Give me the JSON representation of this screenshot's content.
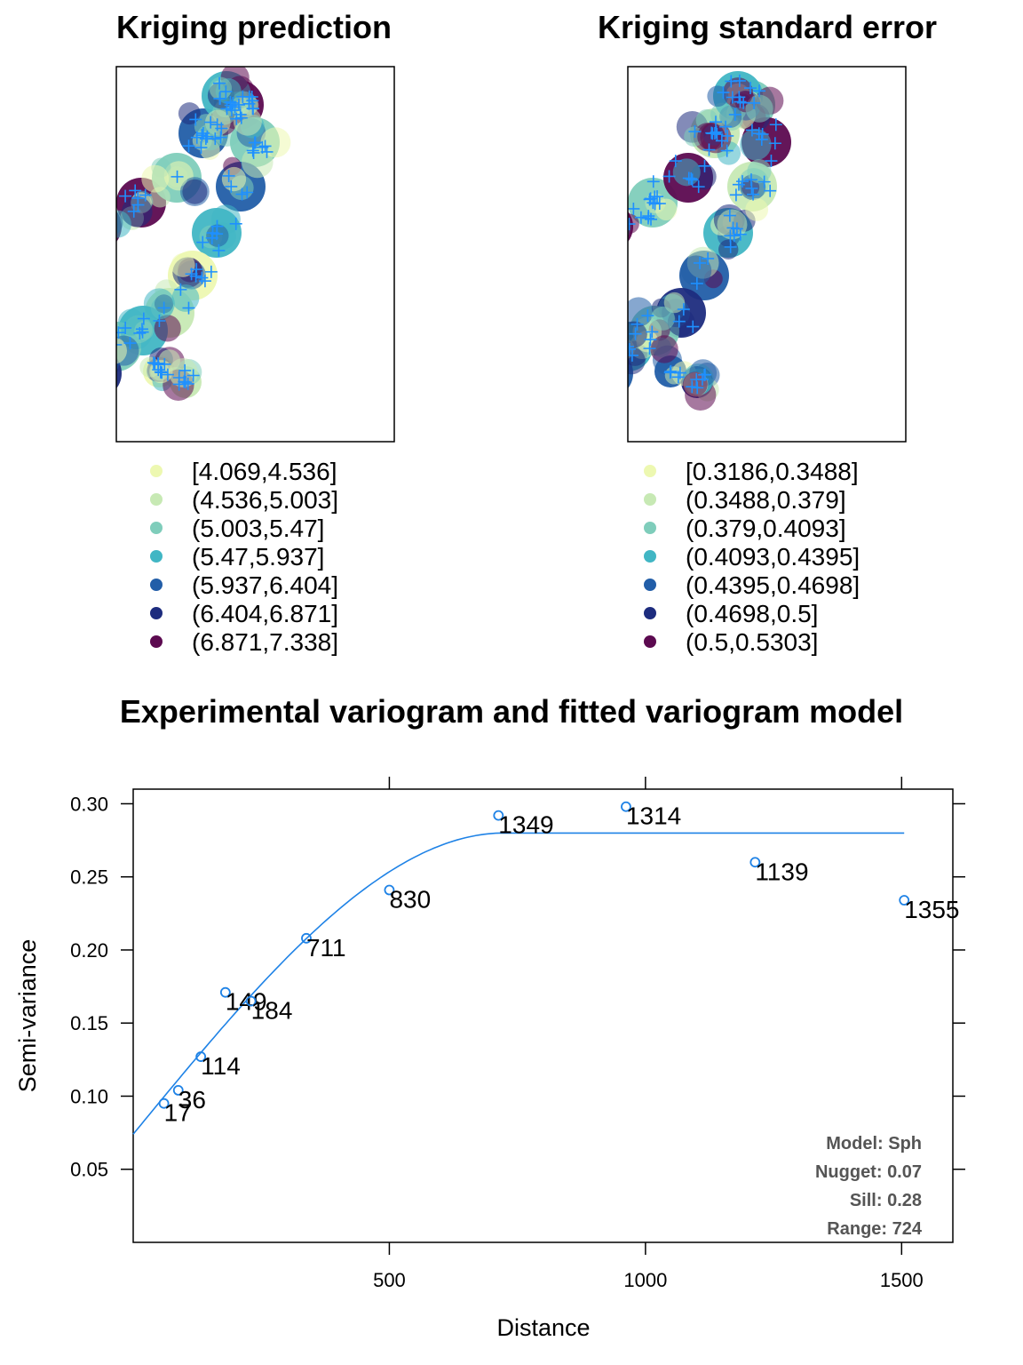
{
  "map_panels": [
    {
      "title": "Kriging prediction",
      "palette": [
        "#edf8b1",
        "#c7e9b4",
        "#7fcdbb",
        "#41b6c4",
        "#225ea8",
        "#1d2c7e",
        "#5c0a50"
      ],
      "point_marker_color": "#1e90ff",
      "legend": [
        "[4.069,4.536]",
        "(4.536,5.003]",
        "(5.003,5.47]",
        "(5.47,5.937]",
        "(5.937,6.404]",
        "(6.404,6.871]",
        "(6.871,7.338]"
      ]
    },
    {
      "title": "Kriging standard error",
      "palette": [
        "#edf8b1",
        "#c7e9b4",
        "#7fcdbb",
        "#41b6c4",
        "#225ea8",
        "#1d2c7e",
        "#5c0a50"
      ],
      "point_marker_color": "#1e90ff",
      "legend": [
        "[0.3186,0.3488]",
        "(0.3488,0.379]",
        "(0.379,0.4093]",
        "(0.4093,0.4395]",
        "(0.4395,0.4698]",
        "(0.4698,0.5]",
        "(0.5,0.5303]"
      ]
    }
  ],
  "variogram": {
    "title": "Experimental variogram and fitted variogram model",
    "xlabel": "Distance",
    "ylabel": "Semi-variance",
    "model_text": [
      "Model: Sph",
      "Nugget: 0.07",
      "Sill: 0.28",
      "Range: 724"
    ],
    "line_color": "#1e82e6"
  },
  "chart_data": {
    "type": "scatter",
    "title": "Experimental variogram and fitted variogram model",
    "xlabel": "Distance",
    "ylabel": "Semi-variance",
    "xlim": [
      0,
      1600
    ],
    "ylim": [
      0,
      0.31
    ],
    "xticks": [
      500,
      1000,
      1500
    ],
    "yticks": [
      0.05,
      0.1,
      0.15,
      0.2,
      0.25,
      0.3
    ],
    "grid": false,
    "series": [
      {
        "type": "scatter",
        "x": [
          60,
          88,
          132,
          180,
          230,
          338,
          500,
          713,
          962,
          1214,
          1505
        ],
        "y": [
          0.095,
          0.104,
          0.127,
          0.171,
          0.165,
          0.208,
          0.241,
          0.292,
          0.298,
          0.26,
          0.234
        ],
        "labels": [
          "17",
          "36",
          "114",
          "149",
          "184",
          "711",
          "830",
          "1349",
          "1314",
          "1139",
          "1355"
        ]
      },
      {
        "type": "line",
        "model": "Sph",
        "nugget": 0.074,
        "sill": 0.28,
        "range": 724,
        "x_max": 1505
      }
    ]
  }
}
